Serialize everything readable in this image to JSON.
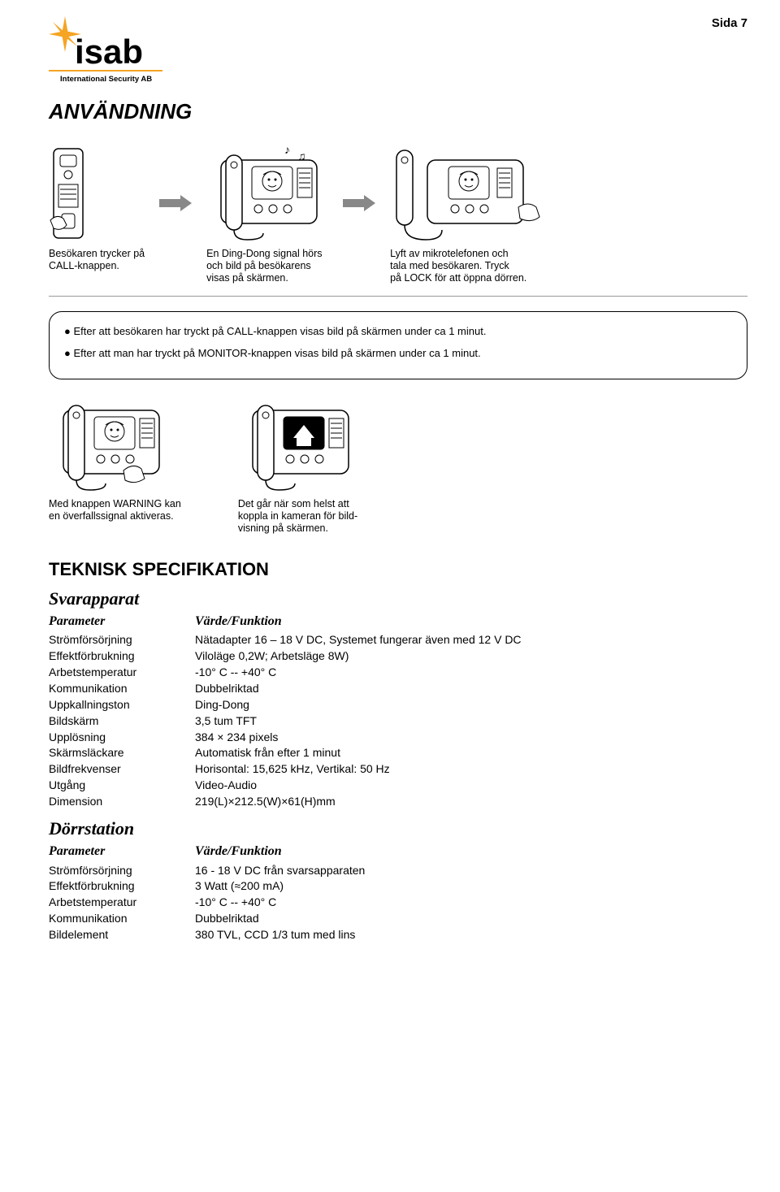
{
  "page_number": "Sida 7",
  "logo": {
    "brand": "isab",
    "subtitle": "International Security AB",
    "star_color": "#f5a423",
    "text_color": "#000000"
  },
  "section_usage_title": "ANVÄNDNING",
  "usage_steps_row1": [
    {
      "caption": "Besökaren trycker på\nCALL-knappen."
    },
    {
      "caption": "En Ding-Dong signal hörs\noch bild på besökarens\nvisas på skärmen."
    },
    {
      "caption": "Lyft av mikrotelefonen och\ntala med besökaren. Tryck\npå LOCK för att öppna dörren."
    }
  ],
  "info_bullets": [
    "Efter att besökaren har tryckt på CALL-knappen visas bild på skärmen under ca 1 minut.",
    "Efter att man har tryckt på MONITOR-knappen visas bild på skärmen under ca 1 minut."
  ],
  "usage_steps_row2": [
    {
      "caption": "Med knappen WARNING kan\nen överfallssignal aktiveras."
    },
    {
      "caption": "Det går när som helst att\nkoppla in kameran för bild-\nvisning på skärmen."
    }
  ],
  "tech_heading": "TEKNISK SPECIFIKATION",
  "svarapparat": {
    "title": "Svarapparat",
    "header": {
      "param": "Parameter",
      "value": "Värde/Funktion"
    },
    "rows": [
      {
        "param": "Strömförsörjning",
        "value": "Nätadapter 16 – 18 V DC, Systemet fungerar även med 12 V DC"
      },
      {
        "param": "Effektförbrukning",
        "value": "Viloläge 0,2W; Arbetsläge 8W)"
      },
      {
        "param": "Arbetstemperatur",
        "value": "-10° C -- +40° C"
      },
      {
        "param": "Kommunikation",
        "value": "Dubbelriktad"
      },
      {
        "param": "Uppkallningston",
        "value": "Ding-Dong"
      },
      {
        "param": "Bildskärm",
        "value": "3,5 tum TFT"
      },
      {
        "param": "Upplösning",
        "value": "384 × 234 pixels"
      },
      {
        "param": "Skärmsläckare",
        "value": "Automatisk från efter 1 minut"
      },
      {
        "param": "Bildfrekvenser",
        "value": "Horisontal: 15,625 kHz, Vertikal: 50 Hz"
      },
      {
        "param": "Utgång",
        "value": "Video-Audio"
      },
      {
        "param": "Dimension",
        "value": "219(L)×212.5(W)×61(H)mm"
      }
    ]
  },
  "dorrstation": {
    "title": "Dörrstation",
    "header": {
      "param": "Parameter",
      "value": "Värde/Funktion"
    },
    "rows": [
      {
        "param": "Strömförsörjning",
        "value": "16 - 18 V DC från svarsapparaten"
      },
      {
        "param": "Effektförbrukning",
        "value": "3 Watt (≈200 mA)"
      },
      {
        "param": "Arbetstemperatur",
        "value": "-10° C -- +40° C"
      },
      {
        "param": "Kommunikation",
        "value": "Dubbelriktad"
      },
      {
        "param": "Bildelement",
        "value": "380 TVL, CCD 1/3 tum med lins"
      }
    ]
  }
}
